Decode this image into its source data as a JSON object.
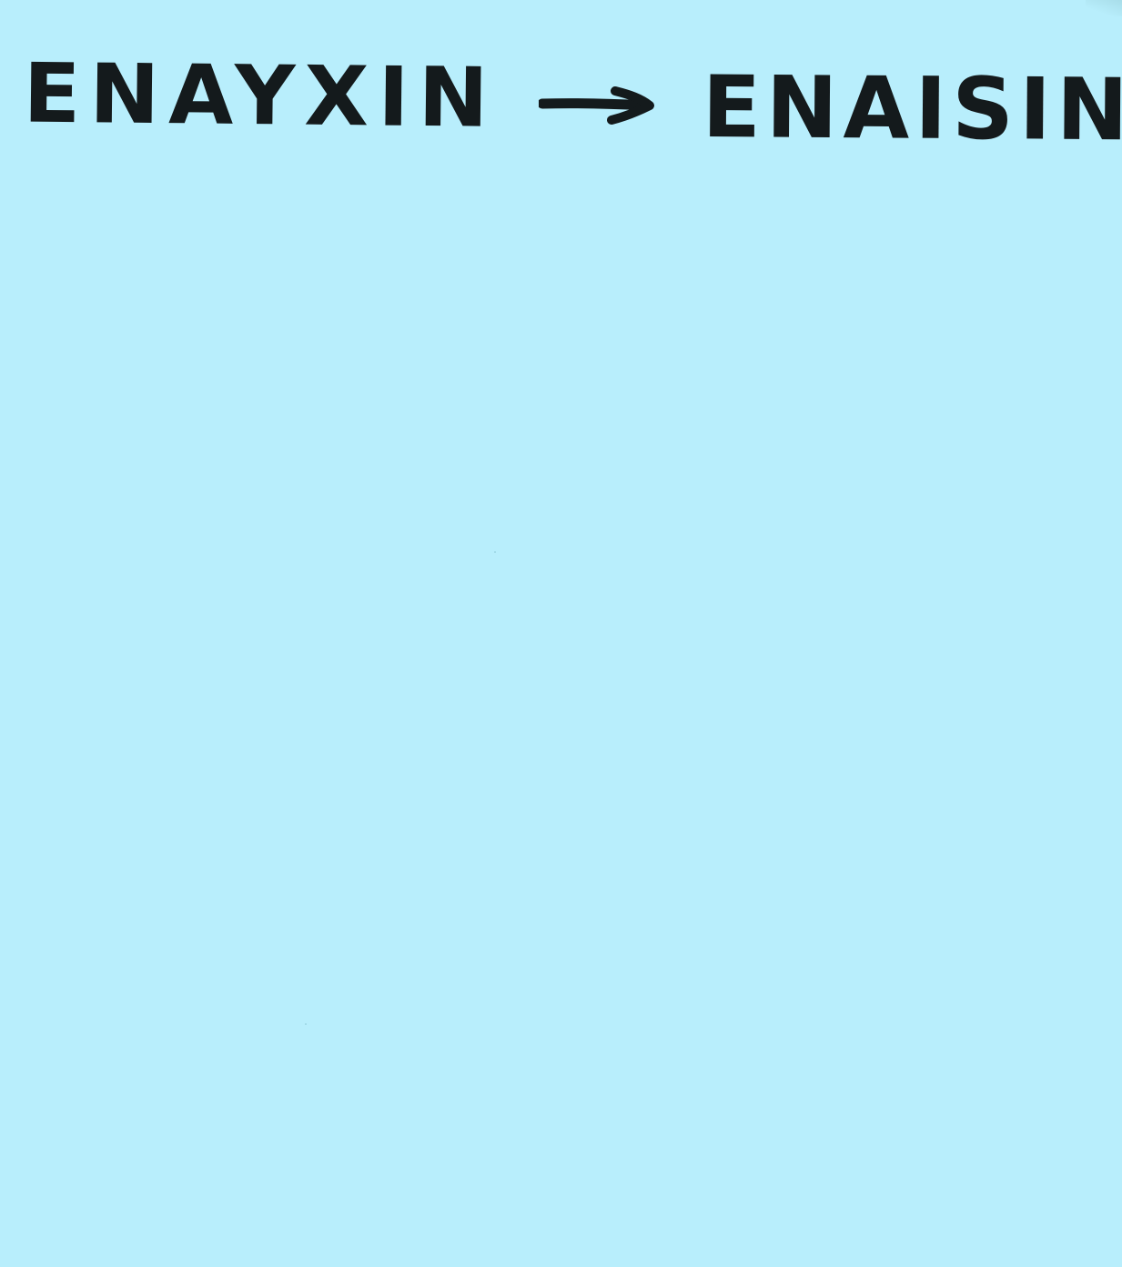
{
  "note": {
    "background_color": "#b8eefc",
    "ink_color": "#141a1c",
    "left_word": "ENAYXIN",
    "arrow_icon": "right-arrow-icon",
    "right_word": "ENAISINS"
  }
}
